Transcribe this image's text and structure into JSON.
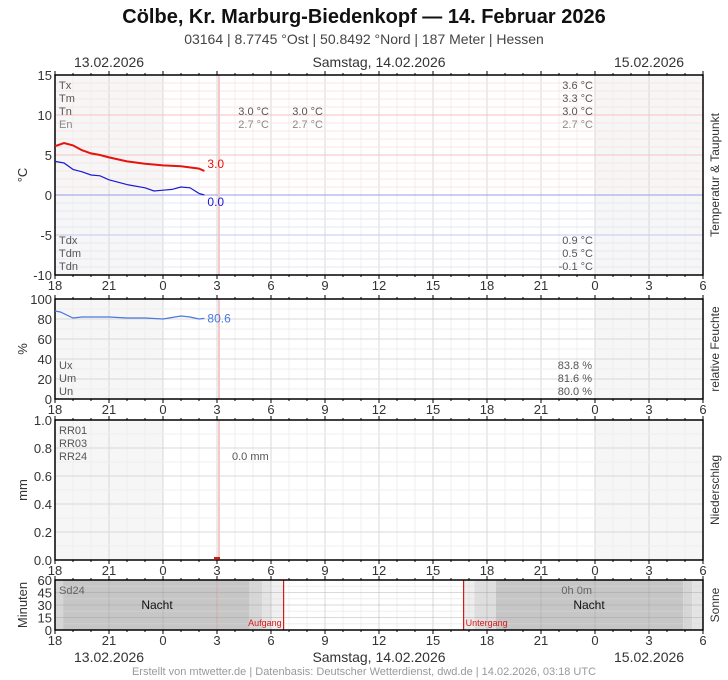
{
  "header": {
    "title": "Cölbe, Kr. Marburg-Biedenkopf  —  14. Februar 2026",
    "subtitle": "03164  |  8.7745 °Ost  |  50.8492 °Nord  |  187 Meter  |  Hessen",
    "date_left": "13.02.2026",
    "date_center": "Samstag, 14.02.2026",
    "date_right": "15.02.2026"
  },
  "footer": {
    "date_left": "13.02.2026",
    "date_center": "Samstag, 14.02.2026",
    "date_right": "15.02.2026",
    "credit": "Erstellt von mtwetter.de | Datenbasis: Deutscher Wetterdienst, dwd.de | 14.02.2026, 03:18 UTC"
  },
  "colors": {
    "temperature": "#e8120c",
    "dewpoint": "#1a1ad6",
    "humidity": "#4a78e0",
    "sun_marker": "#d81818",
    "night_band": "#c8c8c8",
    "past_shade": "#f5f5f5"
  },
  "chart_data": [
    {
      "type": "line",
      "title": "Temperatur & Taupunkt",
      "ylabel": "°C",
      "ylim": [
        -10,
        15
      ],
      "yticks": [
        15,
        10,
        5,
        0,
        -5,
        -10
      ],
      "x_ticks": [
        "18",
        "21",
        "0",
        "3",
        "6",
        "9",
        "12",
        "15",
        "18",
        "21",
        "0",
        "3",
        "6"
      ],
      "x_range_hours": [
        "13.02.2026 18:00",
        "15.02.2026 06:00"
      ],
      "grid": true,
      "series": [
        {
          "name": "Temperatur",
          "color": "#e8120c",
          "x_hours": [
            0,
            0.5,
            1,
            1.5,
            2,
            2.5,
            3,
            4,
            5,
            6,
            7,
            8,
            8.3
          ],
          "values": [
            6.1,
            6.5,
            6.2,
            5.6,
            5.2,
            5.0,
            4.7,
            4.2,
            3.9,
            3.7,
            3.6,
            3.3,
            3.0
          ],
          "last_label": "3.0"
        },
        {
          "name": "Taupunkt",
          "color": "#1a1ad6",
          "x_hours": [
            0,
            0.5,
            1,
            1.5,
            2,
            2.5,
            3,
            4,
            5,
            5.5,
            6,
            6.5,
            7,
            7.5,
            8,
            8.3
          ],
          "values": [
            4.2,
            4.0,
            3.2,
            2.9,
            2.5,
            2.4,
            1.9,
            1.3,
            0.9,
            0.5,
            0.6,
            0.7,
            1.0,
            0.9,
            0.2,
            0.0
          ],
          "last_label": "0.0"
        }
      ],
      "stats_top": {
        "labels": [
          "Tx",
          "Tm",
          "Tn",
          "En"
        ],
        "day_col1": [
          "",
          "",
          "3.0 °C",
          "2.7 °C"
        ],
        "day_col2": [
          "",
          "",
          "3.0 °C",
          "2.7 °C"
        ],
        "right": [
          "3.6 °C",
          "3.3 °C",
          "3.0 °C",
          "2.7 °C"
        ]
      },
      "stats_bottom": {
        "labels": [
          "Tdx",
          "Tdm",
          "Tdn"
        ],
        "right": [
          "0.9 °C",
          "0.5 °C",
          "-0.1 °C"
        ]
      }
    },
    {
      "type": "line",
      "title": "relative Feuchte",
      "ylabel": "%",
      "ylim": [
        0,
        100
      ],
      "yticks": [
        100,
        80,
        60,
        40,
        20,
        0
      ],
      "series": [
        {
          "name": "relative Feuchte",
          "color": "#4a78e0",
          "x_hours": [
            0,
            0.3,
            1,
            1.5,
            2,
            3,
            4,
            5,
            6,
            7,
            7.5,
            8,
            8.3
          ],
          "values": [
            88,
            87,
            81,
            82,
            82,
            82,
            81,
            81,
            80,
            83,
            82,
            80,
            80.6
          ],
          "last_label": "80.6"
        }
      ],
      "stats": {
        "labels": [
          "Ux",
          "Um",
          "Un"
        ],
        "right": [
          "83.8 %",
          "81.6 %",
          "80.0 %"
        ]
      }
    },
    {
      "type": "bar",
      "title": "Niederschlag",
      "ylabel": "mm",
      "ylim": [
        0,
        1.0
      ],
      "yticks": [
        "1.0",
        "0.8",
        "0.6",
        "0.4",
        "0.2",
        "0.0"
      ],
      "series": [
        {
          "name": "Niederschlag",
          "x_hours": [
            9
          ],
          "values": [
            0.0
          ]
        }
      ],
      "stats": {
        "labels": [
          "RR01",
          "RR03",
          "RR24"
        ],
        "day_value": "0.0 mm"
      }
    },
    {
      "type": "area",
      "title": "Sonne",
      "ylabel": "Minuten",
      "ylim": [
        0,
        60
      ],
      "yticks": [
        60,
        45,
        30,
        15,
        0
      ],
      "night_label": "Nacht",
      "sunrise_label": "Aufgang",
      "sunset_label": "Untergang",
      "sunrise_hours": 12.7,
      "sunset_hours": 22.7,
      "stats": {
        "label": "Sd24",
        "value": "0h 0m"
      }
    }
  ],
  "panels": {
    "temp": {
      "right_label": "Temperatur & Taupunkt",
      "unit": "°C"
    },
    "hum": {
      "right_label": "relative Feuchte",
      "unit": "%"
    },
    "rain": {
      "right_label": "Niederschlag",
      "unit": "mm"
    },
    "sun": {
      "right_label": "Sonne",
      "unit": "Minuten"
    }
  }
}
